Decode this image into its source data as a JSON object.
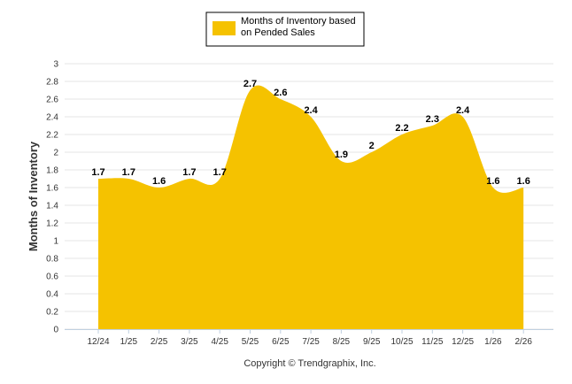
{
  "chart_data": {
    "type": "area",
    "categories": [
      "12/24",
      "1/25",
      "2/25",
      "3/25",
      "4/25",
      "5/25",
      "6/25",
      "7/25",
      "8/25",
      "9/25",
      "10/25",
      "11/25",
      "12/25",
      "1/26",
      "2/26"
    ],
    "series": [
      {
        "name": "Months of Inventory based on Pended Sales",
        "values": [
          1.7,
          1.7,
          1.6,
          1.7,
          1.7,
          2.7,
          2.6,
          2.4,
          1.9,
          2,
          2.2,
          2.3,
          2.4,
          1.6,
          1.6
        ],
        "labels": [
          "1.7",
          "1.7",
          "1.6",
          "1.7",
          "1.7",
          "2.7",
          "2.6",
          "2.4",
          "1.9",
          "2",
          "2.2",
          "2.3",
          "2.4",
          "1.6",
          "1.6"
        ],
        "color": "#F5C200"
      }
    ],
    "yticks": [
      "0",
      "0.2",
      "0.4",
      "0.6",
      "0.8",
      "1",
      "1.2",
      "1.4",
      "1.6",
      "1.8",
      "2",
      "2.2",
      "2.4",
      "2.6",
      "2.8",
      "3"
    ],
    "ylabel": "Months of Inventory",
    "xlabel": "",
    "ylim": [
      0,
      3
    ],
    "grid": true,
    "legend_position": "top-center",
    "legend_lines": [
      "Months of Inventory based",
      "on Pended Sales"
    ],
    "credit": "Copyright © Trendgraphix, Inc."
  }
}
